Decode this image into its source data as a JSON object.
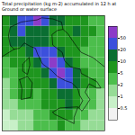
{
  "chart_data": {
    "type": "map",
    "title": "Total precipitation (kg m-2) accumulated in 12 h at Ground or water surface",
    "xlim": [
      6,
      19
    ],
    "ylim": [
      36,
      47
    ],
    "tick_labels": false,
    "grid": false,
    "precip": {
      "lon": [
        6,
        7,
        8,
        9,
        10,
        11,
        12,
        13,
        14,
        15,
        16,
        17,
        18,
        19
      ],
      "lat": [
        36,
        37,
        38,
        39,
        40,
        41,
        42,
        43,
        44,
        45,
        46,
        47
      ],
      "values": [
        [
          0.5,
          0.5,
          1,
          1,
          2,
          2,
          2,
          5,
          2,
          2,
          1,
          1,
          1
        ],
        [
          0.5,
          1,
          1,
          1,
          2,
          2,
          5,
          5,
          5,
          2,
          2,
          1,
          1
        ],
        [
          1,
          1,
          2,
          2,
          2,
          5,
          5,
          5,
          10,
          5,
          2,
          2,
          1
        ],
        [
          1,
          2,
          5,
          5,
          2,
          5,
          5,
          10,
          10,
          5,
          2,
          2,
          1
        ],
        [
          1,
          2,
          5,
          5,
          5,
          5,
          10,
          20,
          20,
          10,
          5,
          5,
          2
        ],
        [
          2,
          2,
          5,
          5,
          5,
          10,
          30,
          50,
          30,
          10,
          5,
          2,
          2
        ],
        [
          2,
          5,
          5,
          5,
          10,
          20,
          50,
          30,
          10,
          5,
          2,
          2,
          2
        ],
        [
          5,
          5,
          5,
          10,
          20,
          30,
          20,
          10,
          5,
          5,
          2,
          2,
          2
        ],
        [
          5,
          10,
          10,
          10,
          10,
          10,
          5,
          5,
          5,
          5,
          5,
          2,
          2
        ],
        [
          5,
          10,
          20,
          10,
          10,
          10,
          5,
          5,
          5,
          10,
          5,
          5,
          2
        ],
        [
          5,
          10,
          20,
          30,
          50,
          20,
          10,
          10,
          5,
          5,
          5,
          2,
          2
        ]
      ]
    },
    "colorbar": {
      "levels": [
        0.5,
        1,
        2,
        5,
        10,
        20,
        50
      ],
      "colors": [
        "#f2f2f2",
        "#c8f0c8",
        "#96dc96",
        "#4cbe4c",
        "#1e961e",
        "#0a6e32",
        "#3c50dc",
        "#8c3cc8"
      ]
    },
    "coastlines": [
      [
        [
          7.5,
          43.8
        ],
        [
          8.2,
          43.9
        ],
        [
          8.8,
          44.4
        ],
        [
          9.5,
          44.1
        ],
        [
          10.2,
          43.9
        ],
        [
          10.5,
          43.3
        ],
        [
          11.1,
          42.4
        ],
        [
          12.2,
          41.8
        ],
        [
          13.0,
          41.2
        ],
        [
          14.0,
          40.8
        ],
        [
          14.8,
          40.6
        ],
        [
          15.6,
          40.0
        ],
        [
          15.8,
          39.4
        ],
        [
          16.2,
          38.9
        ],
        [
          15.7,
          38.2
        ],
        [
          16.1,
          37.9
        ],
        [
          16.6,
          38.4
        ],
        [
          17.1,
          39.0
        ],
        [
          16.5,
          39.7
        ],
        [
          17.0,
          40.5
        ],
        [
          18.0,
          40.1
        ],
        [
          18.5,
          40.1
        ],
        [
          18.0,
          40.7
        ],
        [
          17.0,
          41.1
        ],
        [
          16.0,
          41.5
        ],
        [
          15.9,
          41.9
        ],
        [
          14.7,
          42.1
        ],
        [
          13.9,
          42.7
        ],
        [
          13.6,
          43.5
        ],
        [
          12.4,
          44.2
        ],
        [
          12.3,
          45.2
        ],
        [
          13.0,
          45.6
        ],
        [
          13.7,
          45.7
        ],
        [
          13.5,
          46.4
        ],
        [
          12.4,
          46.7
        ],
        [
          11.0,
          46.8
        ],
        [
          10.4,
          46.6
        ],
        [
          9.3,
          46.5
        ],
        [
          8.4,
          46.4
        ],
        [
          7.0,
          45.9
        ],
        [
          6.8,
          45.1
        ],
        [
          7.0,
          44.2
        ],
        [
          7.5,
          43.8
        ]
      ],
      [
        [
          12.4,
          37.8
        ],
        [
          13.3,
          38.2
        ],
        [
          15.6,
          38.3
        ],
        [
          15.1,
          37.3
        ],
        [
          15.1,
          36.7
        ],
        [
          14.3,
          37.0
        ],
        [
          12.6,
          37.6
        ],
        [
          12.4,
          37.8
        ]
      ],
      [
        [
          8.2,
          40.9
        ],
        [
          9.2,
          41.2
        ],
        [
          9.8,
          40.6
        ],
        [
          9.6,
          39.2
        ],
        [
          9.0,
          39.1
        ],
        [
          8.4,
          39.0
        ],
        [
          8.5,
          40.0
        ],
        [
          8.2,
          40.9
        ]
      ],
      [
        [
          9.4,
          43.0
        ],
        [
          9.5,
          42.3
        ],
        [
          9.2,
          41.4
        ],
        [
          8.6,
          41.7
        ],
        [
          8.6,
          42.4
        ],
        [
          9.4,
          43.0
        ]
      ],
      [
        [
          13.7,
          45.7
        ],
        [
          14.3,
          45.3
        ],
        [
          15.2,
          44.3
        ],
        [
          16.0,
          43.5
        ],
        [
          17.5,
          43.0
        ],
        [
          18.5,
          42.4
        ],
        [
          19.0,
          42.1
        ]
      ],
      [
        [
          6.0,
          43.1
        ],
        [
          7.5,
          43.8
        ]
      ]
    ]
  }
}
